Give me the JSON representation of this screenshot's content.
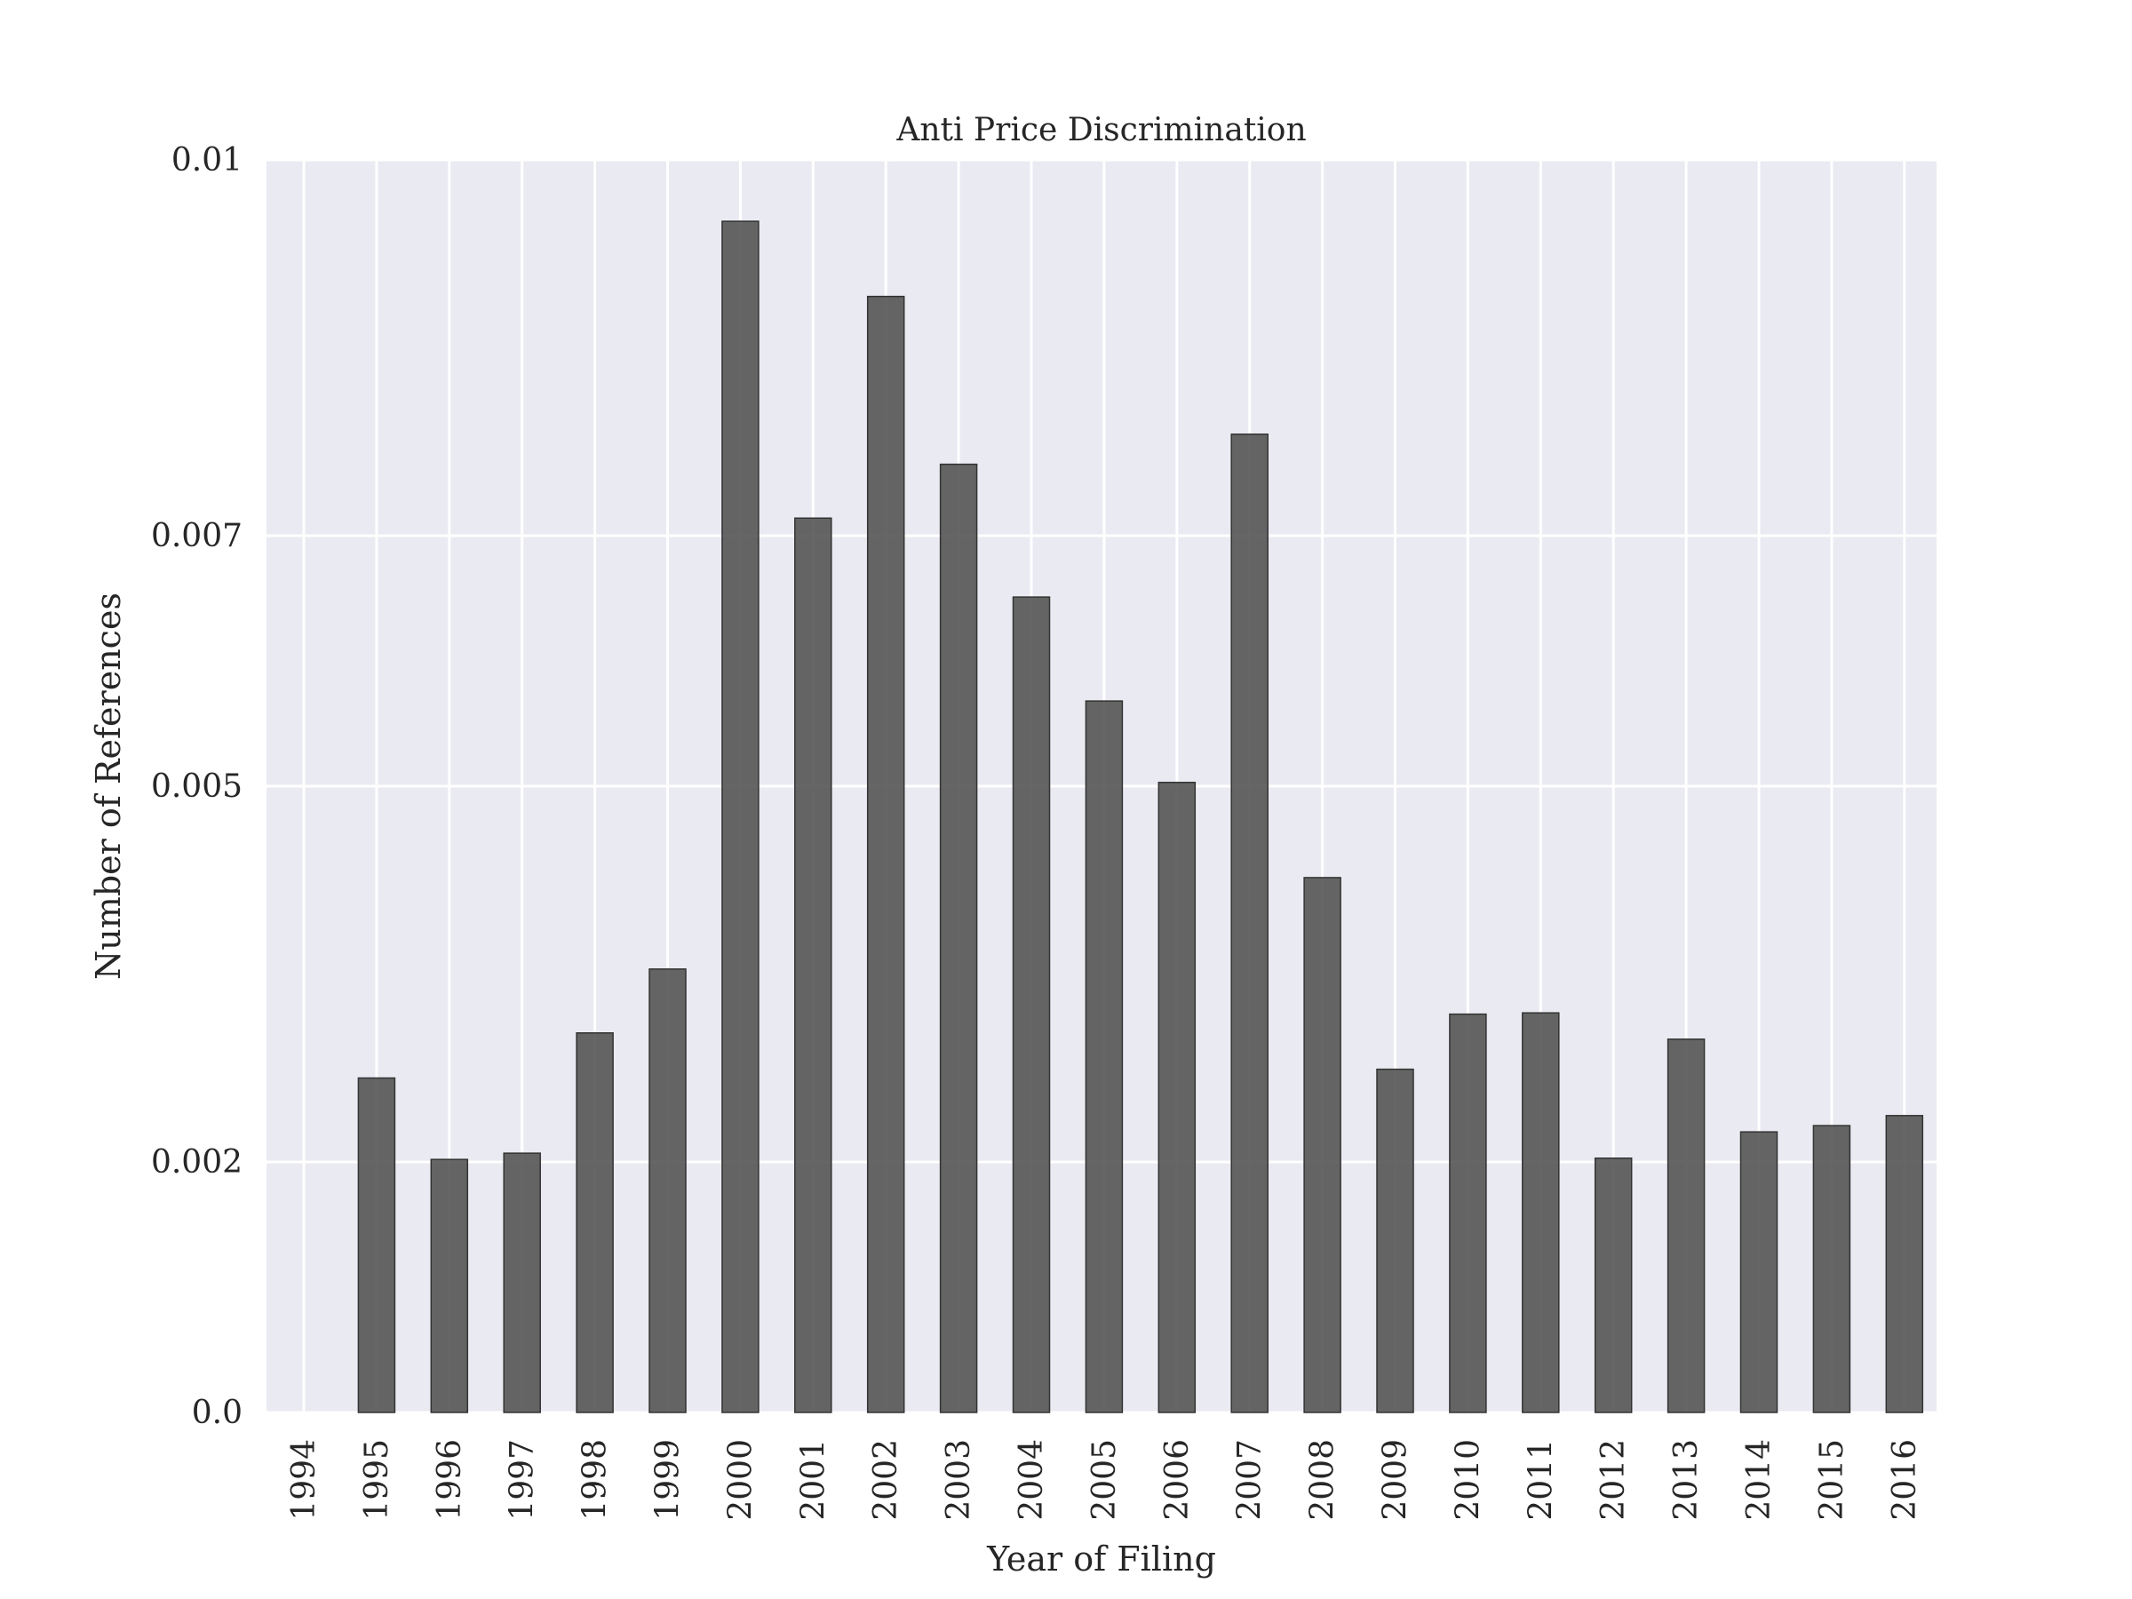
{
  "chart_data": {
    "type": "bar",
    "title": "Anti Price Discrimination",
    "xlabel": "Year of Filing",
    "ylabel": "Number of References",
    "categories": [
      "1994",
      "1995",
      "1996",
      "1997",
      "1998",
      "1999",
      "2000",
      "2001",
      "2002",
      "2003",
      "2004",
      "2005",
      "2006",
      "2007",
      "2008",
      "2009",
      "2010",
      "2011",
      "2012",
      "2013",
      "2014",
      "2015",
      "2016"
    ],
    "values": [
      0.0,
      0.00267,
      0.00202,
      0.00207,
      0.00303,
      0.00354,
      0.00951,
      0.00714,
      0.00891,
      0.00757,
      0.00651,
      0.00568,
      0.00503,
      0.00781,
      0.00427,
      0.00274,
      0.00318,
      0.00319,
      0.00203,
      0.00298,
      0.00224,
      0.00229,
      0.00237
    ],
    "yticks": [
      0.0,
      0.002,
      0.005,
      0.007,
      0.01
    ],
    "ytick_labels": [
      "0.0",
      "0.002",
      "0.005",
      "0.007",
      "0.01"
    ],
    "ylim": [
      0,
      0.01
    ],
    "grid": true,
    "colors": {
      "bar": "#555555",
      "bar_edge": "#333333",
      "background": "#eaeaf2",
      "grid": "#ffffff"
    }
  }
}
